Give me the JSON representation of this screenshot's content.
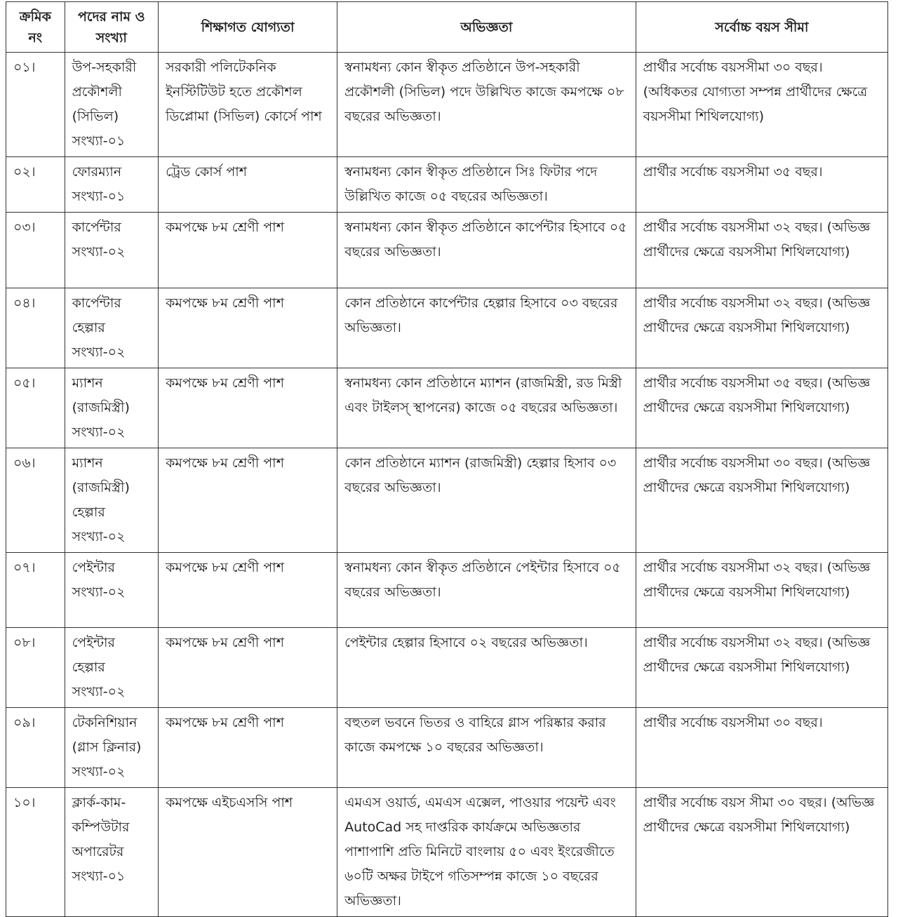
{
  "headers": [
    "ক্রমিক নং",
    "পদের নাম ও সংখ্যা",
    "শিক্ষাগত যোগ্যতা",
    "অভিজ্ঞতা",
    "সর্বোচ্চ বয়স সীমা"
  ],
  "rows": [
    {
      "serial": "০১।",
      "post": "উপ-সহকারী প্রকৌশলী (সিভিল) সংখ্যা-০১",
      "education": "সরকারী পলিটেকনিক ইনস্টিটিউট হতে প্রকৌশল ডিপ্লোমা (সিভিল) কোর্সে পাশ",
      "experience": "স্বনামধন্য কোন স্বীকৃত প্রতিষ্ঠানে উপ-সহকারী প্রকৌশলী (সিভিল) পদে উল্লিখিত কাজে কমপক্ষে ০৮ বছরের অভিজ্ঞতা।",
      "age": "প্রার্থীর সর্বোচ্চ বয়সসীমা ৩০ বছর। (অধিকতর যোগ্যতা সম্পন্ন প্রার্থীদের ক্ষেত্রে বয়সসীমা শিথিলযোগ্য)"
    },
    {
      "serial": "০২।",
      "post": "ফোরম্যান সংখ্যা-০১",
      "education": "ট্রেড কোর্স পাশ",
      "experience": "স্বনামধন্য কোন স্বীকৃত প্রতিষ্ঠানে সিঃ ফিটার পদে উল্লিখিত কাজে ০৫ বছরের অভিজ্ঞতা।",
      "age": "প্রার্থীর সর্বোচ্চ বয়সসীমা ৩৫ বছর।"
    },
    {
      "serial": "০৩।",
      "post": "কার্পেন্টার সংখ্যা-০২",
      "education": "কমপক্ষে ৮ম শ্রেণী পাশ",
      "experience": "স্বনামধন্য কোন স্বীকৃত প্রতিষ্ঠানে কার্পেন্টার হিসাবে ০৫ বছরের অভিজ্ঞতা।",
      "age": "প্রার্থীর সর্বোচ্চ বয়সসীমা ৩২ বছর। (অভিজ্ঞ প্রার্থীদের ক্ষেত্রে বয়সসীমা শিথিলযোগ্য)"
    },
    {
      "serial": "০৪।",
      "post": "কার্পেন্টার হেল্পার সংখ্যা-০২",
      "education": "কমপক্ষে ৮ম শ্রেণী পাশ",
      "experience": "কোন প্রতিষ্ঠানে কার্পেন্টার হেল্পার হিসাবে ০৩ বছরের অভিজ্ঞতা।",
      "age": "প্রার্থীর সর্বোচ্চ বয়সসীমা ৩২ বছর। (অভিজ্ঞ প্রার্থীদের ক্ষেত্রে বয়সসীমা শিথিলযোগ্য)"
    },
    {
      "serial": "০৫।",
      "post": "ম্যাশন (রাজমিস্ত্রী) সংখ্যা-০২",
      "education": "কমপক্ষে ৮ম শ্রেণী পাশ",
      "experience": "স্বনামধন্য কোন প্রতিষ্ঠানে ম্যাশন (রাজমিস্ত্রী, রড মিস্ত্রী এবং টাইলস্ স্থাপনের) কাজে ০৫ বছরের অভিজ্ঞতা।",
      "age": "প্রার্থীর সর্বোচ্চ বয়সসীমা ৩৫ বছর। (অভিজ্ঞ প্রার্থীদের ক্ষেত্রে বয়সসীমা শিথিলযোগ্য)"
    },
    {
      "serial": "০৬।",
      "post": "ম্যাশন (রাজমিস্ত্রী) হেল্পার সংখ্যা-০২",
      "education": "কমপক্ষে ৮ম শ্রেণী পাশ",
      "experience": "কোন প্রতিষ্ঠানে ম্যাশন (রাজমিস্ত্রী) হেল্পার হিসাব ০৩ বছরের অভিজ্ঞতা।",
      "age": "প্রার্থীর সর্বোচ্চ বয়সসীমা ৩০ বছর। (অভিজ্ঞ প্রার্থীদের ক্ষেত্রে বয়সসীমা শিথিলযোগ্য)"
    },
    {
      "serial": "০৭।",
      "post": "পেইন্টার সংখ্যা-০২",
      "education": "কমপক্ষে ৮ম শ্রেণী পাশ",
      "experience": "স্বনামধন্য কোন স্বীকৃত প্রতিষ্ঠানে পেইন্টার হিসাবে ০৫ বছরের অভিজ্ঞতা।",
      "age": "প্রার্থীর সর্বোচ্চ বয়সসীমা ৩২ বছর। (অভিজ্ঞ প্রার্থীদের ক্ষেত্রে বয়সসীমা শিথিলযোগ্য)"
    },
    {
      "serial": "০৮।",
      "post": "পেইন্টার হেল্পার সংখ্যা-০২",
      "education": "কমপক্ষে ৮ম শ্রেণী পাশ",
      "experience": "পেইন্টার হেল্পার হিসাবে ০২ বছরের অভিজ্ঞতা।",
      "age": "প্রার্থীর সর্বোচ্চ বয়সসীমা ৩২ বছর। (অভিজ্ঞ প্রার্থীদের ক্ষেত্রে বয়সসীমা শিথিলযোগ্য)"
    },
    {
      "serial": "০৯।",
      "post": "টেকনিশিয়ান (গ্লাস ক্লিনার) সংখ্যা-০২",
      "education": "কমপক্ষে ৮ম শ্রেণী পাশ",
      "experience": "বহুতল ভবনে ভিতর ও বাহিরে গ্লাস পরিষ্কার করার কাজে কমপক্ষে ১০ বছরের অভিজ্ঞতা।",
      "age": "প্রার্থীর সর্বোচ্চ বয়সসীমা ৩০ বছর।"
    },
    {
      "serial": "১০।",
      "post": "ক্লার্ক-কাম-কম্পিউটার অপারেটর সংখ্যা-০১",
      "education": "কমপক্ষে এইচএসসি পাশ",
      "experience": "এমএস ওয়ার্ড, এমএস এক্সেল, পাওয়ার পয়েন্ট এবং AutoCad সহ দাপ্তরিক কার্যক্রমে অভিজ্ঞতার পাশাপাশি প্রতি মিনিটে বাংলায় ৫০ এবং ইংরেজীতে ৬০টি অক্ষর টাইপে গতিসম্পন্ন কাজে ১০ বছরের অভিজ্ঞতা।",
      "age": "প্রার্থীর সর্বোচ্চ বয়স সীমা ৩০ বছর। (অভিজ্ঞ প্রার্থীদের ক্ষেত্রে বয়সসীমা শিথিলযোগ্য)"
    }
  ]
}
